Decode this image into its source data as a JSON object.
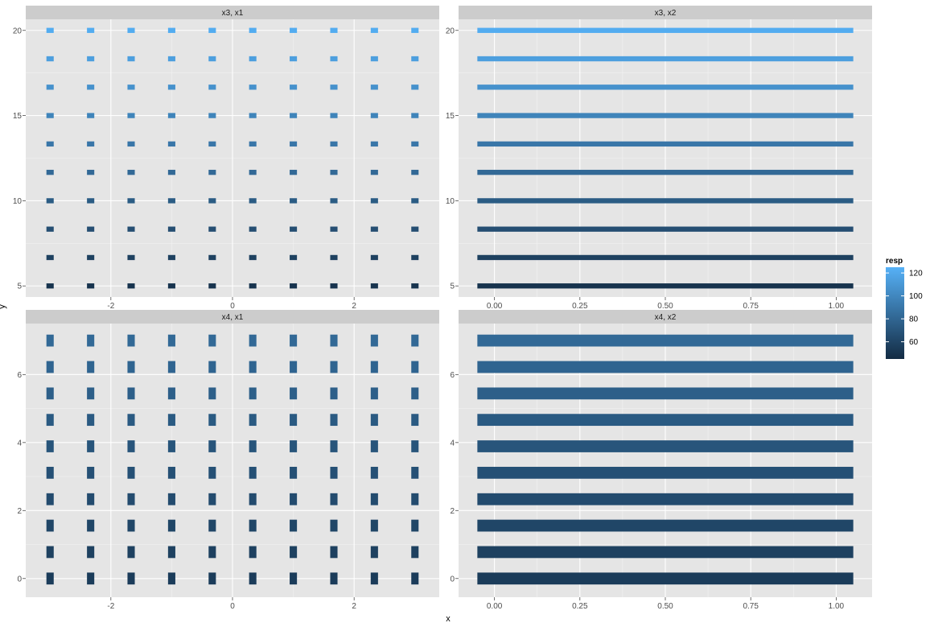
{
  "chart_data": {
    "type": "heatmap",
    "xlabel": "x",
    "ylabel": "y",
    "colors": {
      "panel_bg": "#e5e5e5",
      "strip_bg": "#cccccc",
      "grid_major": "#ffffff",
      "grid_minor": "#f2f2f2",
      "low": "#132b43",
      "high": "#56b1f7"
    },
    "legend": {
      "title": "resp",
      "placement": "right",
      "ticks": [
        120,
        100,
        80,
        60
      ],
      "tick_labels": [
        "120",
        "100",
        "80",
        "60"
      ],
      "limits": [
        45,
        125
      ]
    },
    "panels": [
      {
        "strip": "x3, x1",
        "row": 0,
        "col": 0,
        "xlim": [
          -3.4,
          3.4
        ],
        "ylim": [
          4.35,
          20.65
        ],
        "x_ticks": [
          -2,
          0,
          2
        ],
        "x_tick_labels": [
          "-2",
          "0",
          "2"
        ],
        "y_ticks": [
          5,
          10,
          15,
          20
        ],
        "y_tick_labels": [
          "5",
          "10",
          "15",
          "20"
        ],
        "x": [
          -3,
          -2.333,
          -1.667,
          -1,
          -0.333,
          0.333,
          1,
          1.667,
          2.333,
          3
        ],
        "y": [
          5,
          6.667,
          8.333,
          10,
          11.667,
          13.333,
          15,
          16.667,
          18.333,
          20
        ],
        "tile_width": 0.12,
        "tile_height": 0.3,
        "resp_by_y": [
          50,
          58,
          66,
          74,
          82,
          90,
          98,
          106,
          114,
          122
        ]
      },
      {
        "strip": "x3, x2",
        "row": 0,
        "col": 1,
        "xlim": [
          -0.105,
          1.105
        ],
        "ylim": [
          4.35,
          20.65
        ],
        "x_ticks": [
          0,
          0.25,
          0.5,
          0.75,
          1
        ],
        "x_tick_labels": [
          "0.00",
          "0.25",
          "0.50",
          "0.75",
          "1.00"
        ],
        "y_ticks": [
          5,
          10,
          15,
          20
        ],
        "y_tick_labels": [
          "5",
          "10",
          "15",
          "20"
        ],
        "x": [
          -0.05,
          1.05
        ],
        "y": [
          5,
          6.667,
          8.333,
          10,
          11.667,
          13.333,
          15,
          16.667,
          18.333,
          20
        ],
        "tile_height": 0.3,
        "resp_by_y": [
          50,
          58,
          66,
          74,
          82,
          90,
          98,
          106,
          114,
          122
        ]
      },
      {
        "strip": "x4, x1",
        "row": 1,
        "col": 0,
        "xlim": [
          -3.4,
          3.4
        ],
        "ylim": [
          -0.55,
          7.5
        ],
        "x_ticks": [
          -2,
          0,
          2
        ],
        "x_tick_labels": [
          "-2",
          "0",
          "2"
        ],
        "y_ticks": [
          0,
          2,
          4,
          6
        ],
        "y_tick_labels": [
          "0",
          "2",
          "4",
          "6"
        ],
        "x": [
          -3,
          -2.333,
          -1.667,
          -1,
          -0.333,
          0.333,
          1,
          1.667,
          2.333,
          3
        ],
        "y": [
          0,
          0.778,
          1.556,
          2.333,
          3.111,
          3.889,
          4.667,
          5.444,
          6.222,
          7
        ],
        "tile_width": 0.12,
        "tile_height": 0.35,
        "resp_by_y": [
          55,
          58,
          61,
          64,
          67,
          70,
          73,
          76,
          79,
          82
        ]
      },
      {
        "strip": "x4, x2",
        "row": 1,
        "col": 1,
        "xlim": [
          -0.105,
          1.105
        ],
        "ylim": [
          -0.55,
          7.5
        ],
        "x_ticks": [
          0,
          0.25,
          0.5,
          0.75,
          1
        ],
        "x_tick_labels": [
          "0.00",
          "0.25",
          "0.50",
          "0.75",
          "1.00"
        ],
        "y_ticks": [
          0,
          2,
          4,
          6
        ],
        "y_tick_labels": [
          "0",
          "2",
          "4",
          "6"
        ],
        "x": [
          -0.05,
          1.05
        ],
        "y": [
          0,
          0.778,
          1.556,
          2.333,
          3.111,
          3.889,
          4.667,
          5.444,
          6.222,
          7
        ],
        "tile_height": 0.35,
        "resp_by_y": [
          55,
          58,
          61,
          64,
          67,
          70,
          73,
          76,
          79,
          82
        ]
      }
    ]
  }
}
